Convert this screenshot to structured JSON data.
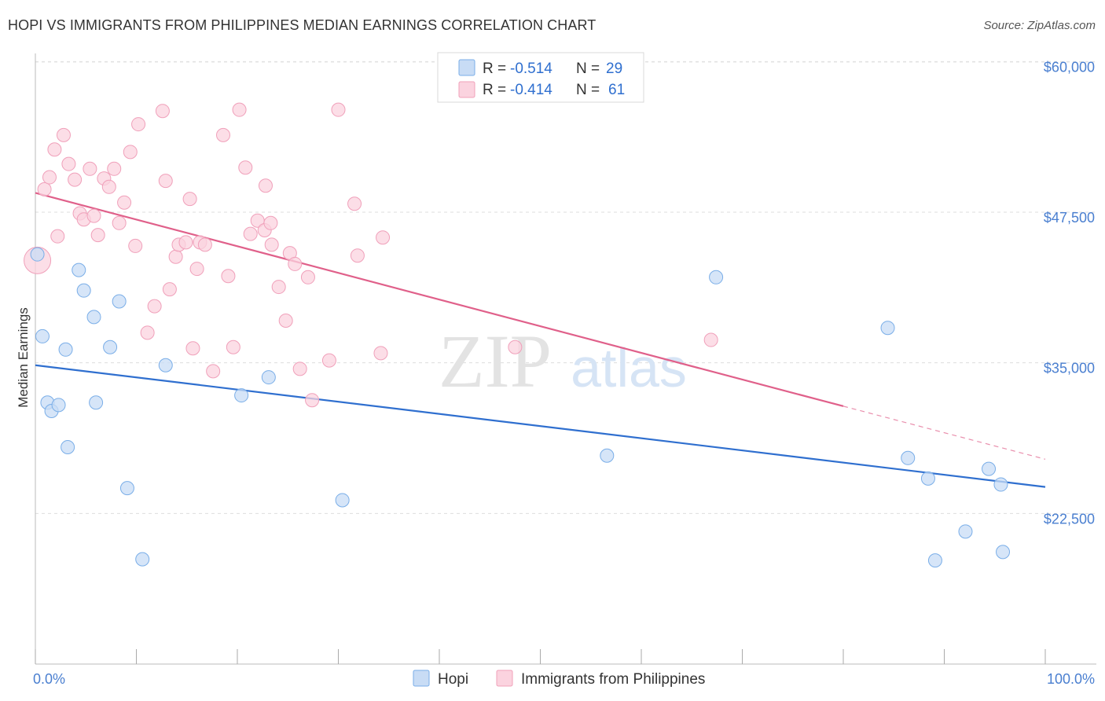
{
  "header": {
    "title": "HOPI VS IMMIGRANTS FROM PHILIPPINES MEDIAN EARNINGS CORRELATION CHART",
    "source": "Source: ZipAtlas.com"
  },
  "watermark": {
    "zip": "ZIP",
    "atlas": "atlas"
  },
  "chart_data": {
    "type": "scatter",
    "title": "HOPI VS IMMIGRANTS FROM PHILIPPINES MEDIAN EARNINGS CORRELATION CHART",
    "xlabel": "",
    "ylabel": "Median Earnings",
    "xlim": [
      0,
      100
    ],
    "ylim": [
      10000,
      62500
    ],
    "x_tick_labels": [
      "0.0%",
      "100.0%"
    ],
    "y_ticks": [
      22500,
      35000,
      47500,
      60000
    ],
    "y_tick_labels": [
      "$22,500",
      "$35,000",
      "$47,500",
      "$60,000"
    ],
    "grid": true,
    "legend_position": "top-center",
    "colors": {
      "hopi": "#6fa8e8",
      "hopi_line": "#2f6fcf",
      "philippines": "#f4a6bf",
      "philippines_line": "#e0608a",
      "tick_text": "#4a7fd0",
      "legend_value": "#2f6fcf"
    },
    "stats": [
      {
        "r_label": "R =",
        "r_value": "-0.514",
        "n_label": "N =",
        "n_value": "29"
      },
      {
        "r_label": "R =",
        "r_value": "-0.414",
        "n_label": "N =",
        "n_value": "61"
      }
    ],
    "series": [
      {
        "name": "Hopi",
        "trend": {
          "x": [
            0,
            100
          ],
          "y": [
            34800,
            24700
          ]
        },
        "points": [
          [
            0.2,
            44000
          ],
          [
            0.7,
            37200
          ],
          [
            1.2,
            31700
          ],
          [
            1.6,
            31000
          ],
          [
            2.3,
            31500
          ],
          [
            3.0,
            36100
          ],
          [
            3.2,
            28000
          ],
          [
            4.3,
            42700
          ],
          [
            4.8,
            41000
          ],
          [
            5.8,
            38800
          ],
          [
            6.0,
            31700
          ],
          [
            7.4,
            36300
          ],
          [
            8.3,
            40100
          ],
          [
            9.1,
            24600
          ],
          [
            10.6,
            18700
          ],
          [
            12.9,
            34800
          ],
          [
            20.4,
            32300
          ],
          [
            23.1,
            33800
          ],
          [
            30.4,
            23600
          ],
          [
            56.6,
            27300
          ],
          [
            67.4,
            42100
          ],
          [
            84.4,
            37900
          ],
          [
            86.4,
            27100
          ],
          [
            88.4,
            25400
          ],
          [
            89.1,
            18600
          ],
          [
            92.1,
            21000
          ],
          [
            94.4,
            26200
          ],
          [
            95.6,
            24900
          ],
          [
            95.8,
            19300
          ]
        ]
      },
      {
        "name": "Immigrants from Philippines",
        "trend": {
          "x": [
            0,
            80
          ],
          "y": [
            49100,
            31400
          ]
        },
        "trend_dashed": {
          "x": [
            80,
            100
          ],
          "y": [
            31400,
            27000
          ]
        },
        "points": [
          [
            0.2,
            43500
          ],
          [
            0.9,
            49400
          ],
          [
            1.4,
            50400
          ],
          [
            1.9,
            52700
          ],
          [
            2.2,
            45500
          ],
          [
            2.8,
            53900
          ],
          [
            3.3,
            51500
          ],
          [
            3.9,
            50200
          ],
          [
            4.4,
            47400
          ],
          [
            4.8,
            46900
          ],
          [
            5.4,
            51100
          ],
          [
            5.8,
            47200
          ],
          [
            6.2,
            45600
          ],
          [
            6.8,
            50300
          ],
          [
            7.3,
            49600
          ],
          [
            7.8,
            51100
          ],
          [
            8.3,
            46600
          ],
          [
            8.8,
            48300
          ],
          [
            9.4,
            52500
          ],
          [
            9.9,
            44700
          ],
          [
            10.2,
            54800
          ],
          [
            11.1,
            37500
          ],
          [
            11.8,
            39700
          ],
          [
            12.6,
            55900
          ],
          [
            12.9,
            50100
          ],
          [
            13.3,
            41100
          ],
          [
            13.9,
            43800
          ],
          [
            14.2,
            44800
          ],
          [
            14.9,
            45000
          ],
          [
            15.3,
            48600
          ],
          [
            15.6,
            36200
          ],
          [
            16.0,
            42800
          ],
          [
            16.3,
            45000
          ],
          [
            16.8,
            44800
          ],
          [
            17.6,
            34300
          ],
          [
            18.6,
            53900
          ],
          [
            19.1,
            42200
          ],
          [
            19.6,
            36300
          ],
          [
            20.2,
            56000
          ],
          [
            20.8,
            51200
          ],
          [
            21.3,
            45700
          ],
          [
            22.0,
            46800
          ],
          [
            22.7,
            46000
          ],
          [
            22.8,
            49700
          ],
          [
            23.3,
            46600
          ],
          [
            23.4,
            44800
          ],
          [
            24.1,
            41300
          ],
          [
            24.8,
            38500
          ],
          [
            25.2,
            44100
          ],
          [
            25.7,
            43200
          ],
          [
            26.2,
            34500
          ],
          [
            27.0,
            42100
          ],
          [
            27.4,
            31900
          ],
          [
            29.1,
            35200
          ],
          [
            30.0,
            56000
          ],
          [
            31.6,
            48200
          ],
          [
            31.9,
            43900
          ],
          [
            34.2,
            35800
          ],
          [
            34.4,
            45400
          ],
          [
            47.5,
            36300
          ],
          [
            66.9,
            36900
          ]
        ]
      }
    ]
  }
}
